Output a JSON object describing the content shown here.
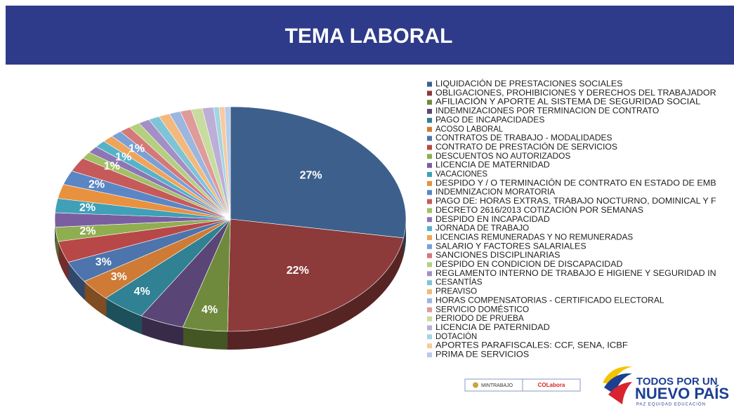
{
  "header": {
    "title": "TEMA LABORAL"
  },
  "chart_data": {
    "type": "pie",
    "categories": [
      "LIQUIDACIÓN DE PRESTACIONES SOCIALES",
      "OBLIGACIONES, PROHIBICIONES Y DERECHOS DEL  TRABAJADOR",
      "AFILIACIÓN Y APORTE AL SISTEMA DE  SEGURIDAD SOCIAL",
      "INDEMNIZACIONES POR TERMINACION DE CONTRATO",
      "PAGO DE INCAPACIDADES",
      "ACOSO LABORAL",
      "CONTRATOS DE TRABAJO - MODALIDADES",
      "CONTRATO DE PRESTACIÓN DE SERVICIOS",
      "DESCUENTOS NO  AUTORIZADOS",
      "LICENCIA DE MATERNIDAD",
      "VACACIONES",
      "DESPIDO Y / O TERMINACIÓN DE CONTRATO EN ESTADO DE EMB",
      "INDEMNIZACION MORATORIA",
      "PAGO DE: HORAS EXTRAS, TRABAJO NOCTURNO, DOMINICAL Y F",
      "DECRETO 2616/2013 COTIZACIÓN POR SEMANAS",
      "DESPIDO EN INCAPACIDAD",
      "JORNADA DE TRABAJO",
      "LICENCIAS REMUNERADAS Y NO REMUNERADAS",
      "SALARIO Y FACTORES SALARIALES",
      "SANCIONES DISCIPLINARIAS",
      "DESPIDO EN CONDICION DE DISCAPACIDAD",
      "REGLAMENTO INTERNO DE TRABAJO E HIGIENE Y SEGURIDAD IN",
      "CESANTÍAS",
      "PREAVISO",
      "HORAS COMPENSATORIAS - CERTIFICADO ELECTORAL",
      "SERVICIO DOMÉSTICO",
      "PERIODO DE PRUEBA",
      "LICENCIA DE PATERNIDAD",
      "DOTACIÓN",
      "APORTES PARAFISCALES: CCF, SENA, ICBF",
      "PRIMA DE SERVICIOS"
    ],
    "values": [
      27,
      22,
      4,
      4,
      4,
      3,
      3,
      3,
      2,
      2,
      2,
      2,
      2,
      2,
      1,
      1,
      1,
      1,
      1,
      1,
      1,
      1,
      1,
      1,
      1,
      1,
      1,
      1,
      0.5,
      0.5,
      0.5
    ],
    "value_labels": [
      "27%",
      "22%",
      "4%",
      null,
      "4%",
      "3%",
      "3%",
      null,
      "2%",
      null,
      "2%",
      null,
      "2%",
      null,
      "1%",
      null,
      "1%",
      null,
      "1%",
      null,
      null,
      null,
      null,
      null,
      null,
      null,
      null,
      null,
      null,
      null,
      null
    ],
    "colors": [
      "#3d5f8c",
      "#8c3a3a",
      "#6f8a3c",
      "#5a4676",
      "#2f8193",
      "#cf7b35",
      "#4d74ad",
      "#b84848",
      "#8fae50",
      "#7a5fa0",
      "#3fa0b8",
      "#e8913f",
      "#5b86c6",
      "#c65a5a",
      "#a2c065",
      "#8e76b4",
      "#55b3c8",
      "#f0a45a",
      "#7aa0d6",
      "#d47878",
      "#b5cf80",
      "#a48fc4",
      "#7ec4d6",
      "#f4b87c",
      "#9bb7e0",
      "#e09a9a",
      "#c8dca0",
      "#bcaed6",
      "#a3d5e2",
      "#f7caa0",
      "#b8cbe8"
    ]
  },
  "footer": {
    "ministry": "MINTRABAJO",
    "colabora": "COLabora",
    "slogan1": "TODOS POR UN",
    "slogan2": "NUEVO PAÍS",
    "slogan3": "PAZ  EQUIDAD  EDUCACIÓN"
  }
}
